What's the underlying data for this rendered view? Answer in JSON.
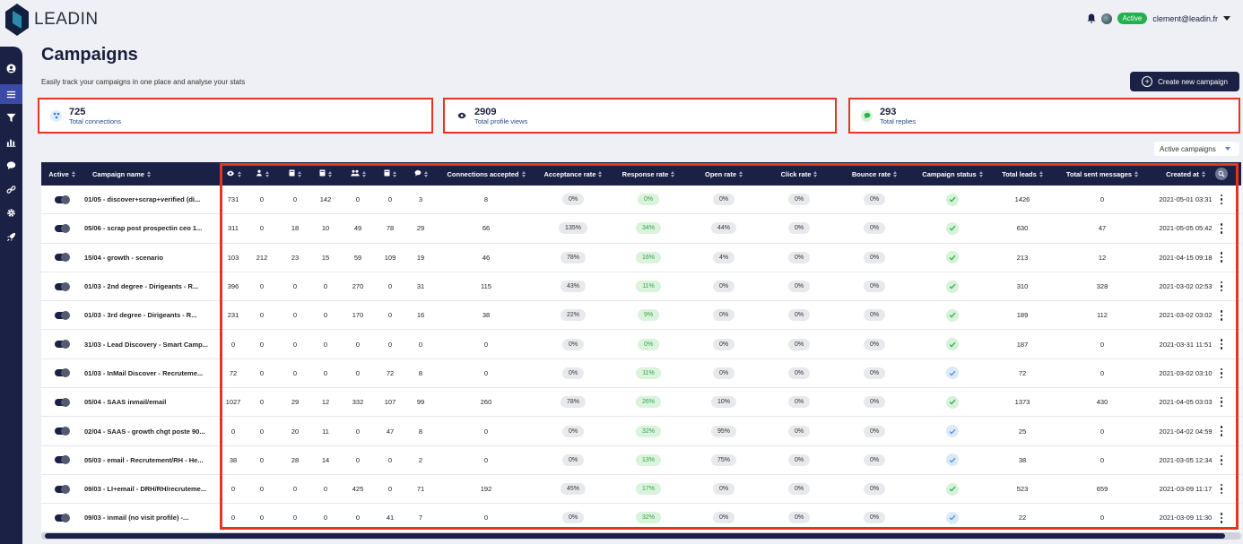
{
  "brand": {
    "name": "LEADIN"
  },
  "user": {
    "status": "Active",
    "email": "clement@leadin.fr"
  },
  "page": {
    "title": "Campaigns",
    "subtitle": "Easily track your campaigns in one place and analyse your stats",
    "create_button": "Create new campaign",
    "filter": "Active campaigns"
  },
  "stats": [
    {
      "value": "725",
      "label": "Total connections",
      "icon": "connections-icon",
      "color": "#2a7de1"
    },
    {
      "value": "2909",
      "label": "Total profile views",
      "icon": "eye-icon",
      "color": "#1b2045"
    },
    {
      "value": "293",
      "label": "Total replies",
      "icon": "chat-bubble-icon",
      "color": "#2bb04a"
    }
  ],
  "table": {
    "headers": {
      "active": "Active",
      "name": "Campaign name",
      "connections_accepted": "Connections accepted",
      "acceptance_rate": "Acceptance rate",
      "response_rate": "Response rate",
      "open_rate": "Open rate",
      "click_rate": "Click rate",
      "bounce_rate": "Bounce rate",
      "campaign_status": "Campaign status",
      "total_leads": "Total leads",
      "total_sent": "Total sent messages",
      "created_at": "Created at"
    },
    "icon_headers": [
      "eye-icon",
      "follow-icon",
      "document-icon",
      "document-icon",
      "users-icon",
      "document-icon",
      "chat-icon"
    ],
    "rows": [
      {
        "name": "01/05 - discover+scrap+verified (di...",
        "m": [
          "731",
          "0",
          "0",
          "142",
          "0",
          "0",
          "3"
        ],
        "accepted": "8",
        "acc": "0%",
        "resp": "0%",
        "open": "0%",
        "click": "0%",
        "bounce": "0%",
        "status": "green",
        "leads": "1426",
        "sent": "0",
        "created": "2021-05-01 03:31"
      },
      {
        "name": "05/06 - scrap post prospectin ceo 1...",
        "m": [
          "311",
          "0",
          "18",
          "10",
          "49",
          "78",
          "29"
        ],
        "accepted": "66",
        "acc": "135%",
        "resp": "34%",
        "open": "44%",
        "click": "0%",
        "bounce": "0%",
        "status": "green",
        "leads": "630",
        "sent": "47",
        "created": "2021-05-05 05:42"
      },
      {
        "name": "15/04 - growth - scenario",
        "m": [
          "103",
          "212",
          "23",
          "15",
          "59",
          "109",
          "19"
        ],
        "accepted": "46",
        "acc": "78%",
        "resp": "16%",
        "open": "4%",
        "click": "0%",
        "bounce": "0%",
        "status": "green",
        "leads": "213",
        "sent": "12",
        "created": "2021-04-15 09:18"
      },
      {
        "name": "01/03 - 2nd degree - Dirigeants - R...",
        "m": [
          "396",
          "0",
          "0",
          "0",
          "270",
          "0",
          "31"
        ],
        "accepted": "115",
        "acc": "43%",
        "resp": "11%",
        "open": "0%",
        "click": "0%",
        "bounce": "0%",
        "status": "green",
        "leads": "310",
        "sent": "328",
        "created": "2021-03-02 02:53"
      },
      {
        "name": "01/03 - 3rd degree - Dirigeants - R...",
        "m": [
          "231",
          "0",
          "0",
          "0",
          "170",
          "0",
          "16"
        ],
        "accepted": "38",
        "acc": "22%",
        "resp": "9%",
        "open": "0%",
        "click": "0%",
        "bounce": "0%",
        "status": "green",
        "leads": "189",
        "sent": "112",
        "created": "2021-03-02 03:02"
      },
      {
        "name": "31/03 - Lead Discovery - Smart Camp...",
        "m": [
          "0",
          "0",
          "0",
          "0",
          "0",
          "0",
          "0"
        ],
        "accepted": "0",
        "acc": "0%",
        "resp": "0%",
        "open": "0%",
        "click": "0%",
        "bounce": "0%",
        "status": "green",
        "leads": "187",
        "sent": "0",
        "created": "2021-03-31 11:51"
      },
      {
        "name": "01/03 - InMail Discover - Recruteme...",
        "m": [
          "72",
          "0",
          "0",
          "0",
          "0",
          "72",
          "8"
        ],
        "accepted": "0",
        "acc": "0%",
        "resp": "11%",
        "open": "0%",
        "click": "0%",
        "bounce": "0%",
        "status": "blue",
        "leads": "72",
        "sent": "0",
        "created": "2021-03-02 03:10"
      },
      {
        "name": "05/04 - SAAS inmail/email",
        "m": [
          "1027",
          "0",
          "29",
          "12",
          "332",
          "107",
          "99"
        ],
        "accepted": "260",
        "acc": "78%",
        "resp": "26%",
        "open": "10%",
        "click": "0%",
        "bounce": "0%",
        "status": "green",
        "leads": "1373",
        "sent": "430",
        "created": "2021-04-05 03:03"
      },
      {
        "name": "02/04 - SAAS - growth chgt poste 90...",
        "m": [
          "0",
          "0",
          "20",
          "11",
          "0",
          "47",
          "8"
        ],
        "accepted": "0",
        "acc": "0%",
        "resp": "32%",
        "open": "95%",
        "click": "0%",
        "bounce": "0%",
        "status": "blue",
        "leads": "25",
        "sent": "0",
        "created": "2021-04-02 04:59"
      },
      {
        "name": "05/03 - email - Recrutement/RH - He...",
        "m": [
          "38",
          "0",
          "28",
          "14",
          "0",
          "0",
          "2"
        ],
        "accepted": "0",
        "acc": "0%",
        "resp": "13%",
        "open": "75%",
        "click": "0%",
        "bounce": "0%",
        "status": "blue",
        "leads": "38",
        "sent": "0",
        "created": "2021-03-05 12:34"
      },
      {
        "name": "09/03 - LI+email - DRH/RH/recruteme...",
        "m": [
          "0",
          "0",
          "0",
          "0",
          "425",
          "0",
          "71"
        ],
        "accepted": "192",
        "acc": "45%",
        "resp": "17%",
        "open": "0%",
        "click": "0%",
        "bounce": "0%",
        "status": "green",
        "leads": "523",
        "sent": "659",
        "created": "2021-03-09 11:17"
      },
      {
        "name": "09/03 - inmail (no visit profile) -...",
        "m": [
          "0",
          "0",
          "0",
          "0",
          "0",
          "41",
          "7"
        ],
        "accepted": "0",
        "acc": "0%",
        "resp": "32%",
        "open": "0%",
        "click": "0%",
        "bounce": "0%",
        "status": "blue",
        "leads": "22",
        "sent": "0",
        "created": "2021-03-09 11:30"
      }
    ]
  }
}
